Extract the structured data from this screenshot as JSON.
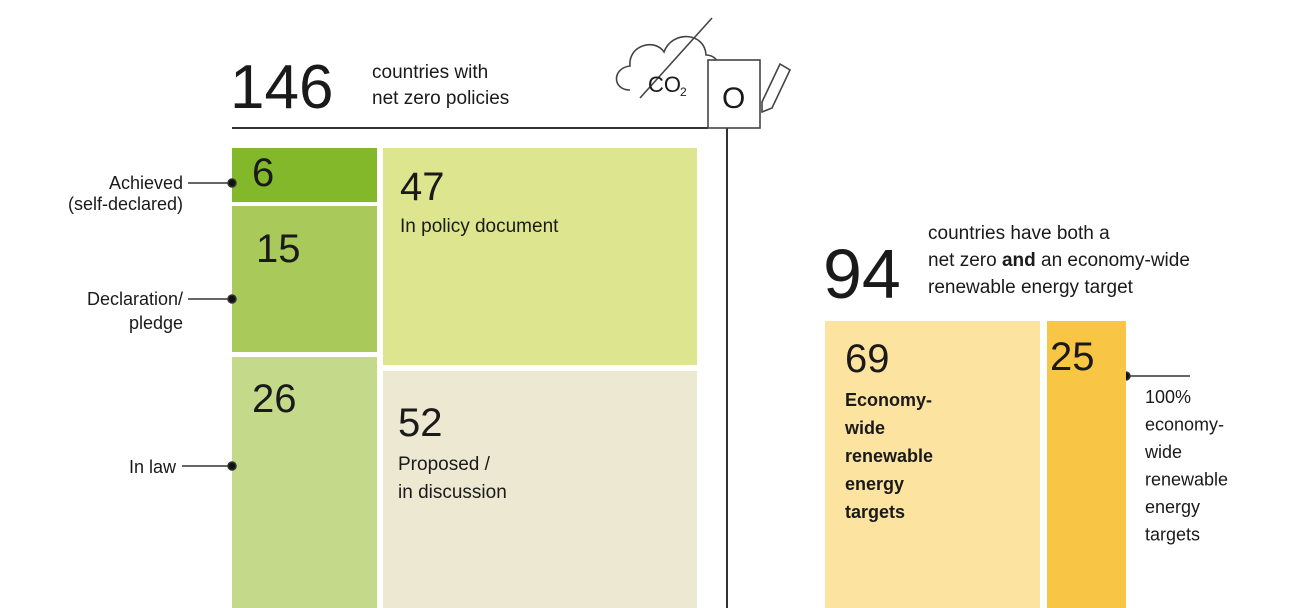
{
  "net_zero": {
    "total": "146",
    "caption": [
      "countries with",
      "net zero policies"
    ],
    "blocks": [
      {
        "number": "6",
        "label": [
          "Achieved",
          "(self-declared)"
        ]
      },
      {
        "number": "15",
        "label": [
          "Declaration/",
          "pledge"
        ]
      },
      {
        "number": "26",
        "label": [
          "In law"
        ]
      },
      {
        "number": "47",
        "label": [
          "In policy document"
        ]
      },
      {
        "number": "52",
        "label": [
          "Proposed /",
          "in discussion"
        ]
      }
    ],
    "icon": {
      "text": "CO",
      "subscript": "2",
      "box": "O"
    }
  },
  "renewable": {
    "total": "94",
    "caption": [
      "countries have both a",
      [
        "net zero ",
        "and",
        " an economy-wide"
      ],
      "renewable energy target"
    ],
    "blocks": [
      {
        "number": "69",
        "label": [
          "Economy-",
          "wide",
          "renewable",
          "energy",
          "targets"
        ]
      },
      {
        "number": "25",
        "label": [
          "100%",
          "economy-",
          "wide",
          "renewable",
          "energy",
          "targets"
        ]
      }
    ]
  }
}
